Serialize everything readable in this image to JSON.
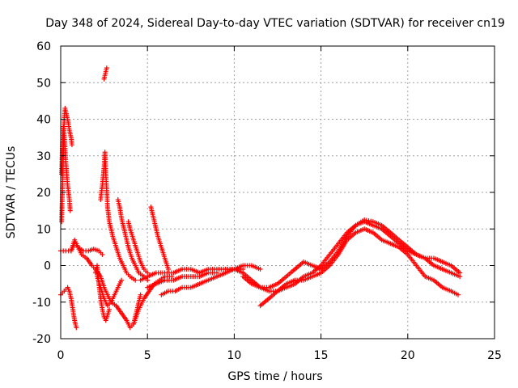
{
  "chart_data": {
    "type": "scatter",
    "title": "Day 348 of 2024, Sidereal Day-to-day VTEC variation (SDTVAR) for receiver cn19",
    "xlabel": "GPS time / hours",
    "ylabel": "SDTVAR / TECUs",
    "xlim": [
      0,
      25
    ],
    "ylim": [
      -20,
      60
    ],
    "xticks": [
      0,
      5,
      10,
      15,
      20,
      25
    ],
    "yticks": [
      -20,
      -10,
      0,
      10,
      20,
      30,
      40,
      50,
      60
    ],
    "grid": true,
    "marker": "+",
    "color": "#ff0000",
    "series": [
      {
        "name": "t1",
        "points": [
          [
            0,
            4
          ],
          [
            0.3,
            4
          ],
          [
            0.6,
            4
          ],
          [
            0.8,
            6
          ],
          [
            1.0,
            5
          ],
          [
            1.3,
            4
          ],
          [
            1.6,
            4
          ],
          [
            1.9,
            4.5
          ],
          [
            2.2,
            4
          ],
          [
            2.4,
            3
          ]
        ]
      },
      {
        "name": "t2",
        "points": [
          [
            0,
            -8
          ],
          [
            0.2,
            -7
          ],
          [
            0.4,
            -6
          ],
          [
            0.5,
            -7
          ],
          [
            0.6,
            -9
          ],
          [
            0.7,
            -12
          ],
          [
            0.8,
            -15
          ],
          [
            0.9,
            -17
          ]
        ]
      },
      {
        "name": "t3",
        "points": [
          [
            0.05,
            12
          ],
          [
            0.1,
            20
          ],
          [
            0.15,
            30
          ],
          [
            0.2,
            40
          ],
          [
            0.25,
            43
          ],
          [
            0.3,
            42
          ],
          [
            0.4,
            40
          ],
          [
            0.5,
            37
          ],
          [
            0.6,
            35
          ],
          [
            0.65,
            33
          ]
        ]
      },
      {
        "name": "t4",
        "points": [
          [
            0.05,
            25
          ],
          [
            0.1,
            33
          ],
          [
            0.15,
            38
          ],
          [
            0.2,
            36
          ],
          [
            0.3,
            28
          ],
          [
            0.4,
            22
          ],
          [
            0.5,
            18
          ],
          [
            0.55,
            15
          ]
        ]
      },
      {
        "name": "t5",
        "points": [
          [
            0.6,
            4
          ],
          [
            0.8,
            7
          ],
          [
            1.0,
            5
          ],
          [
            1.2,
            3
          ],
          [
            1.5,
            2
          ],
          [
            1.8,
            0
          ],
          [
            2.0,
            -1
          ],
          [
            2.3,
            -3
          ],
          [
            2.5,
            -6
          ],
          [
            2.7,
            -8
          ],
          [
            2.9,
            -10
          ],
          [
            3.2,
            -11
          ],
          [
            3.5,
            -13
          ],
          [
            3.8,
            -15
          ],
          [
            4.0,
            -17
          ],
          [
            4.2,
            -16
          ],
          [
            4.4,
            -12
          ],
          [
            4.6,
            -8
          ]
        ]
      },
      {
        "name": "t6",
        "points": [
          [
            2.1,
            -3
          ],
          [
            2.3,
            -6
          ],
          [
            2.5,
            -9
          ],
          [
            2.7,
            -11
          ],
          [
            2.9,
            -10
          ],
          [
            3.1,
            -8
          ],
          [
            3.3,
            -6
          ],
          [
            3.5,
            -4
          ]
        ]
      },
      {
        "name": "t7",
        "points": [
          [
            2.0,
            -2
          ],
          [
            2.1,
            0
          ],
          [
            2.2,
            -5
          ],
          [
            2.3,
            -9
          ],
          [
            2.4,
            -12
          ],
          [
            2.5,
            -14
          ],
          [
            2.6,
            -15
          ],
          [
            2.8,
            -12
          ]
        ]
      },
      {
        "name": "t8",
        "points": [
          [
            2.5,
            51
          ],
          [
            2.55,
            52
          ],
          [
            2.6,
            53
          ],
          [
            2.65,
            54
          ]
        ]
      },
      {
        "name": "t9",
        "points": [
          [
            2.3,
            18
          ],
          [
            2.4,
            22
          ],
          [
            2.5,
            27
          ],
          [
            2.55,
            31
          ],
          [
            2.6,
            25
          ],
          [
            2.7,
            16
          ],
          [
            2.8,
            12
          ],
          [
            3.0,
            8
          ],
          [
            3.2,
            5
          ],
          [
            3.4,
            2
          ],
          [
            3.6,
            0
          ],
          [
            3.8,
            -2
          ],
          [
            4.0,
            -3
          ],
          [
            4.3,
            -4
          ]
        ]
      },
      {
        "name": "t10",
        "points": [
          [
            3.3,
            18
          ],
          [
            3.4,
            16
          ],
          [
            3.5,
            13
          ],
          [
            3.7,
            9
          ],
          [
            3.9,
            5
          ],
          [
            4.1,
            2
          ],
          [
            4.3,
            0
          ],
          [
            4.5,
            -2
          ],
          [
            4.8,
            -3
          ],
          [
            5.0,
            -4
          ]
        ]
      },
      {
        "name": "t11",
        "points": [
          [
            3.9,
            12
          ],
          [
            4.0,
            10
          ],
          [
            4.2,
            7
          ],
          [
            4.4,
            4
          ],
          [
            4.6,
            1
          ],
          [
            4.8,
            -1
          ],
          [
            5.0,
            -2
          ]
        ]
      },
      {
        "name": "t12",
        "points": [
          [
            5.2,
            16
          ],
          [
            5.4,
            12
          ],
          [
            5.6,
            8
          ],
          [
            5.8,
            5
          ],
          [
            6.0,
            2
          ],
          [
            6.2,
            -1
          ]
        ]
      },
      {
        "name": "t13",
        "points": [
          [
            4.2,
            -16
          ],
          [
            4.5,
            -12
          ],
          [
            4.8,
            -9
          ],
          [
            5.1,
            -7
          ],
          [
            5.4,
            -5
          ],
          [
            5.7,
            -4
          ],
          [
            6.0,
            -3
          ],
          [
            6.4,
            -3
          ]
        ]
      },
      {
        "name": "t14",
        "points": [
          [
            5.0,
            -6
          ],
          [
            5.5,
            -5
          ],
          [
            6.0,
            -4
          ],
          [
            6.5,
            -4
          ],
          [
            7.0,
            -3
          ],
          [
            7.5,
            -3
          ],
          [
            8.0,
            -3
          ],
          [
            8.5,
            -2
          ],
          [
            9.0,
            -2
          ]
        ]
      },
      {
        "name": "t15",
        "points": [
          [
            5.8,
            -8
          ],
          [
            6.2,
            -7
          ],
          [
            6.6,
            -7
          ],
          [
            7.0,
            -6
          ],
          [
            7.5,
            -6
          ],
          [
            8.0,
            -5
          ],
          [
            8.5,
            -4
          ],
          [
            9.0,
            -3
          ],
          [
            9.5,
            -2
          ],
          [
            10,
            -1
          ],
          [
            10.5,
            -1
          ]
        ]
      },
      {
        "name": "t16",
        "points": [
          [
            4.6,
            -4
          ],
          [
            5.0,
            -3
          ],
          [
            5.5,
            -2
          ],
          [
            6.0,
            -2
          ],
          [
            6.5,
            -2
          ],
          [
            7.0,
            -1
          ],
          [
            7.5,
            -1
          ],
          [
            8.0,
            -2
          ],
          [
            8.5,
            -1
          ],
          [
            9.0,
            -1
          ],
          [
            9.5,
            -1
          ],
          [
            10,
            -1
          ],
          [
            10.5,
            0
          ],
          [
            11,
            0
          ],
          [
            11.5,
            -1
          ]
        ]
      },
      {
        "name": "t17",
        "points": [
          [
            9.5,
            -1
          ],
          [
            10,
            -1
          ],
          [
            10.5,
            -2
          ],
          [
            11,
            -4
          ],
          [
            11.5,
            -6
          ],
          [
            12,
            -7
          ],
          [
            12.5,
            -7
          ],
          [
            13,
            -6
          ],
          [
            13.5,
            -5
          ],
          [
            14,
            -3
          ],
          [
            14.5,
            -2
          ],
          [
            15,
            0
          ],
          [
            15.5,
            3
          ],
          [
            16,
            6
          ],
          [
            16.5,
            9
          ],
          [
            17,
            11
          ],
          [
            17.5,
            12
          ],
          [
            18,
            11
          ],
          [
            18.5,
            10
          ],
          [
            19,
            8
          ],
          [
            19.5,
            6
          ],
          [
            20,
            4
          ],
          [
            20.5,
            3
          ],
          [
            21,
            2
          ],
          [
            21.5,
            0
          ],
          [
            22,
            -1
          ],
          [
            22.5,
            -2
          ],
          [
            23,
            -3
          ]
        ]
      },
      {
        "name": "t18",
        "points": [
          [
            10.5,
            -3
          ],
          [
            11,
            -5
          ],
          [
            11.5,
            -6
          ],
          [
            12,
            -6
          ],
          [
            12.5,
            -5
          ],
          [
            13,
            -3
          ],
          [
            13.5,
            -1
          ],
          [
            14,
            1
          ],
          [
            14.5,
            0
          ],
          [
            15,
            -1
          ],
          [
            15.5,
            1
          ],
          [
            16,
            4
          ],
          [
            16.5,
            8
          ],
          [
            17,
            11
          ],
          [
            17.5,
            12.5
          ],
          [
            18,
            12
          ],
          [
            18.5,
            11
          ],
          [
            19,
            9
          ],
          [
            19.5,
            7
          ],
          [
            20,
            5
          ],
          [
            20.5,
            3
          ],
          [
            21,
            2
          ],
          [
            21.5,
            2
          ],
          [
            22,
            1
          ],
          [
            22.5,
            0
          ],
          [
            23,
            -2
          ]
        ]
      },
      {
        "name": "t19",
        "points": [
          [
            11.5,
            -11
          ],
          [
            12,
            -9
          ],
          [
            12.5,
            -7
          ],
          [
            13,
            -5
          ],
          [
            13.5,
            -4
          ],
          [
            14,
            -4
          ],
          [
            14.5,
            -3
          ],
          [
            15,
            -2
          ],
          [
            15.5,
            0
          ],
          [
            16,
            3
          ],
          [
            16.5,
            7
          ],
          [
            17,
            9
          ],
          [
            17.5,
            10
          ],
          [
            18,
            9
          ],
          [
            18.5,
            7
          ],
          [
            19,
            6
          ],
          [
            19.5,
            5
          ],
          [
            20,
            3
          ],
          [
            20.5,
            0
          ],
          [
            21,
            -3
          ],
          [
            21.5,
            -4
          ],
          [
            22,
            -6
          ],
          [
            22.5,
            -7
          ],
          [
            22.9,
            -8
          ]
        ]
      }
    ]
  }
}
